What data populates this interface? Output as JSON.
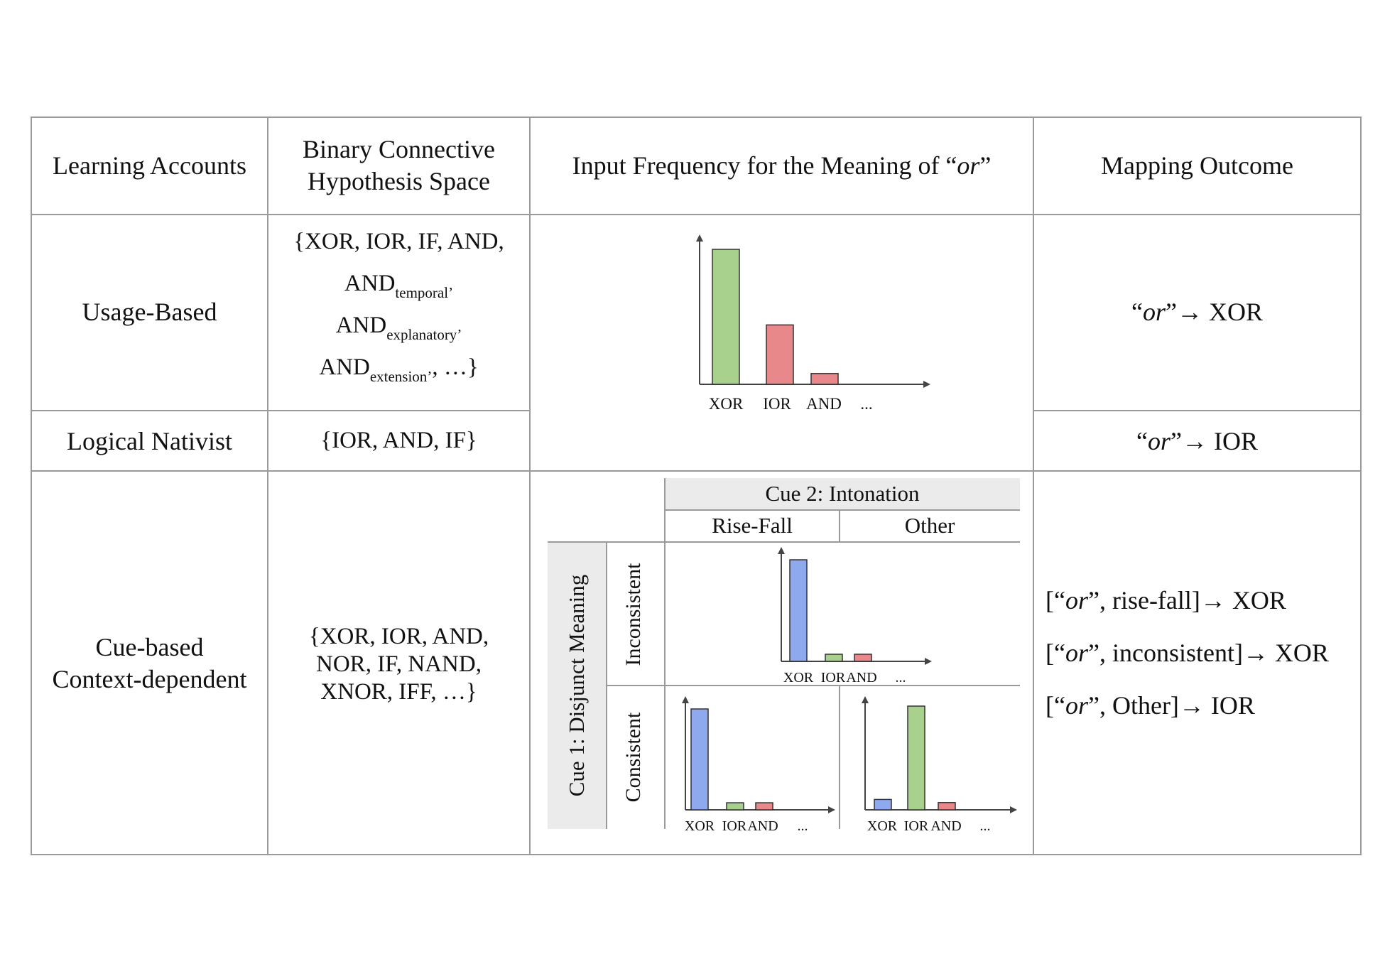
{
  "colors": {
    "green": "#a9d18e",
    "red": "#e8888a",
    "blue": "#8fa9ef",
    "grid": "#9a9a9a",
    "shade": "#ebebeb"
  },
  "headers": {
    "col1": "Learning Accounts",
    "col2_line1": "Binary Connective",
    "col2_line2": "Hypothesis Space",
    "col3_prefix": "Input Frequency for the Meaning of “",
    "col3_or": "or",
    "col3_suffix": "”",
    "col4": "Mapping Outcome"
  },
  "rows": {
    "usage": {
      "label": "Usage-Based",
      "hyp_line1": "{XOR, IOR, IF, AND,",
      "and": "AND",
      "sub_temporal": "temporal",
      "sub_explanatory": "explanatory",
      "sub_extension": "extension",
      "comma": "’",
      "tail": ", …}",
      "out_open": "“",
      "out_or": "or",
      "out_close": "”→ XOR"
    },
    "nativist": {
      "label": "Logical Nativist",
      "hyp": "{IOR, AND, IF}",
      "out_open": "“",
      "out_or": "or",
      "out_close": "”→ IOR"
    },
    "cue": {
      "label_line1": "Cue-based",
      "label_line2": "Context-dependent",
      "hyp_line1": "{XOR, IOR, AND,",
      "hyp_line2": "NOR, IF, NAND,",
      "hyp_line3": "XNOR, IFF, …}",
      "out1_pre": "[“",
      "out1_or": "or",
      "out1_post": "”, rise-fall]→ XOR",
      "out2_pre": "[“",
      "out2_or": "or",
      "out2_post": "”, inconsistent]→ XOR",
      "out3_pre": "[“",
      "out3_or": "or",
      "out3_post": "”, Other]→ IOR"
    }
  },
  "cue_table": {
    "cue2": "Cue 2: Intonation",
    "rise_fall": "Rise-Fall",
    "other": "Other",
    "cue1": "Cue 1: Disjunct Meaning",
    "inconsistent": "Inconsistent",
    "consistent": "Consistent"
  },
  "chart_data": [
    {
      "type": "bar",
      "name": "main",
      "categories": [
        "XOR",
        "IOR",
        "AND",
        "..."
      ],
      "values": [
        1.0,
        0.44,
        0.08,
        null
      ],
      "colors": [
        "green",
        "red",
        "red"
      ]
    },
    {
      "type": "bar",
      "name": "inconsistent-risefall",
      "categories": [
        "XOR",
        "IOR",
        "AND",
        "..."
      ],
      "values": [
        1.0,
        0.07,
        0.07,
        null
      ],
      "colors": [
        "blue",
        "green",
        "red"
      ]
    },
    {
      "type": "bar",
      "name": "consistent-risefall",
      "categories": [
        "XOR",
        "IOR",
        "AND",
        "..."
      ],
      "values": [
        1.0,
        0.07,
        0.07,
        null
      ],
      "colors": [
        "blue",
        "green",
        "red"
      ]
    },
    {
      "type": "bar",
      "name": "consistent-other",
      "categories": [
        "XOR",
        "IOR",
        "AND",
        "..."
      ],
      "values": [
        0.1,
        1.0,
        0.07,
        null
      ],
      "colors": [
        "blue",
        "green",
        "red"
      ]
    }
  ]
}
